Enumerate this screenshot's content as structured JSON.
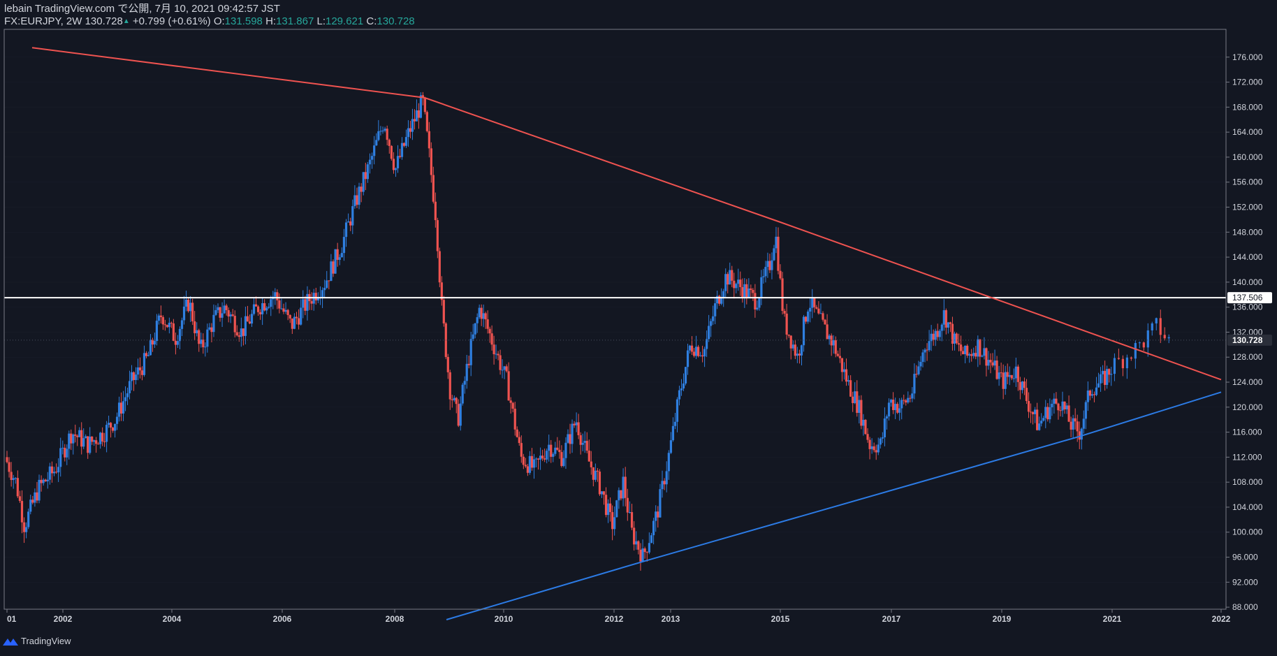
{
  "header": {
    "publisher": "lebain TradingView.com で公開, 7月 10, 2021 09:42:57 JST",
    "symbol": "FX:EURJPY, 2W",
    "last": "130.728",
    "change": "+0.799 (+0.61%)",
    "open_label": "O:",
    "open": "131.598",
    "high_label": "H:",
    "high": "131.867",
    "low_label": "L:",
    "low": "129.621",
    "close_label": "C:",
    "close": "130.728"
  },
  "footer": {
    "brand": "TradingView",
    "logo_icon": "tradingview-logo-icon"
  },
  "colors": {
    "background": "#131722",
    "up": "#2962ff",
    "up_candle": "#2f7fe0",
    "down": "#ef5350",
    "resistance_line": "#ef5350",
    "support_line": "#2c7be5",
    "horizontal_line": "#ffffff",
    "axis_text": "#d1d4dc",
    "gridline": "#2a2e39"
  },
  "chart_data": {
    "type": "candlestick",
    "symbol": "FX:EURJPY",
    "interval": "2W",
    "x_axis": {
      "tick_labels": [
        "01",
        "2002",
        "2004",
        "2006",
        "2008",
        "2010",
        "2012",
        "2013",
        "2015",
        "2017",
        "2019",
        "2021",
        "2022"
      ]
    },
    "y_axis": {
      "range": [
        86,
        178
      ],
      "ticks": [
        88,
        92,
        96,
        100,
        104,
        108,
        112,
        116,
        120,
        124,
        128,
        132,
        136,
        140,
        144,
        148,
        152,
        156,
        160,
        164,
        168,
        172,
        176
      ],
      "tick_labels": [
        "88.000",
        "92.000",
        "96.000",
        "100.000",
        "104.000",
        "108.000",
        "112.000",
        "116.000",
        "120.000",
        "124.000",
        "128.000",
        "132.000",
        "136.000",
        "140.000",
        "144.000",
        "148.000",
        "152.000",
        "156.000",
        "160.000",
        "164.000",
        "168.000",
        "172.000",
        "176.000"
      ],
      "position": "right"
    },
    "price_labels": [
      {
        "value": 137.506,
        "label": "137.506",
        "kind": "horizontal-line"
      },
      {
        "value": 130.728,
        "label": "130.728",
        "kind": "last-price"
      }
    ],
    "horizontal_line": {
      "value": 137.506
    },
    "trendlines": [
      {
        "name": "resistance",
        "points": [
          [
            2001.45,
            177.5
          ],
          [
            2008.55,
            169.5
          ],
          [
            2015.0,
            149.6
          ],
          [
            2022.0,
            124.4
          ]
        ]
      },
      {
        "name": "support",
        "points": [
          [
            2008.95,
            86.0
          ],
          [
            2012.55,
            95.4
          ],
          [
            2020.4,
            115.3
          ],
          [
            2022.0,
            122.4
          ]
        ]
      }
    ],
    "price_path": [
      [
        2001.0,
        112
      ],
      [
        2001.2,
        108
      ],
      [
        2001.35,
        101
      ],
      [
        2001.6,
        107
      ],
      [
        2001.9,
        110
      ],
      [
        2002.2,
        116
      ],
      [
        2002.5,
        114
      ],
      [
        2002.8,
        116
      ],
      [
        2003.0,
        118
      ],
      [
        2003.3,
        124
      ],
      [
        2003.6,
        128
      ],
      [
        2003.85,
        135
      ],
      [
        2004.1,
        131
      ],
      [
        2004.35,
        137
      ],
      [
        2004.55,
        129
      ],
      [
        2004.8,
        134
      ],
      [
        2005.0,
        136
      ],
      [
        2005.3,
        132
      ],
      [
        2005.6,
        136
      ],
      [
        2005.9,
        138
      ],
      [
        2006.2,
        133
      ],
      [
        2006.5,
        137
      ],
      [
        2006.8,
        140
      ],
      [
        2007.1,
        146
      ],
      [
        2007.35,
        153
      ],
      [
        2007.6,
        159
      ],
      [
        2007.85,
        166
      ],
      [
        2008.05,
        158
      ],
      [
        2008.3,
        164
      ],
      [
        2008.55,
        169
      ],
      [
        2008.65,
        162
      ],
      [
        2008.8,
        150
      ],
      [
        2008.9,
        136
      ],
      [
        2009.05,
        123
      ],
      [
        2009.2,
        118
      ],
      [
        2009.4,
        128
      ],
      [
        2009.6,
        136
      ],
      [
        2009.85,
        130
      ],
      [
        2010.1,
        124
      ],
      [
        2010.35,
        112
      ],
      [
        2010.6,
        110
      ],
      [
        2010.85,
        114
      ],
      [
        2011.1,
        112
      ],
      [
        2011.35,
        118
      ],
      [
        2011.55,
        112
      ],
      [
        2011.8,
        107
      ],
      [
        2012.0,
        101
      ],
      [
        2012.2,
        108
      ],
      [
        2012.35,
        100
      ],
      [
        2012.55,
        96
      ],
      [
        2012.8,
        103
      ],
      [
        2013.0,
        112
      ],
      [
        2013.2,
        122
      ],
      [
        2013.4,
        130
      ],
      [
        2013.65,
        129
      ],
      [
        2013.85,
        136
      ],
      [
        2014.05,
        141
      ],
      [
        2014.35,
        139
      ],
      [
        2014.6,
        137
      ],
      [
        2014.85,
        143
      ],
      [
        2014.95,
        148
      ],
      [
        2015.1,
        134
      ],
      [
        2015.35,
        128
      ],
      [
        2015.55,
        137
      ],
      [
        2015.8,
        133
      ],
      [
        2016.0,
        130
      ],
      [
        2016.25,
        124
      ],
      [
        2016.45,
        120
      ],
      [
        2016.65,
        114
      ],
      [
        2016.85,
        114
      ],
      [
        2017.0,
        121
      ],
      [
        2017.2,
        120
      ],
      [
        2017.4,
        122
      ],
      [
        2017.65,
        130
      ],
      [
        2017.85,
        132
      ],
      [
        2018.0,
        135
      ],
      [
        2018.2,
        130
      ],
      [
        2018.4,
        128
      ],
      [
        2018.6,
        130
      ],
      [
        2018.85,
        127
      ],
      [
        2019.05,
        124
      ],
      [
        2019.3,
        126
      ],
      [
        2019.5,
        121
      ],
      [
        2019.7,
        117
      ],
      [
        2019.9,
        120
      ],
      [
        2020.1,
        121
      ],
      [
        2020.3,
        117
      ],
      [
        2020.45,
        116
      ],
      [
        2020.65,
        123
      ],
      [
        2020.85,
        124
      ],
      [
        2021.0,
        126
      ],
      [
        2021.15,
        128
      ],
      [
        2021.3,
        130
      ],
      [
        2021.45,
        133
      ],
      [
        2021.55,
        130.7
      ]
    ]
  }
}
